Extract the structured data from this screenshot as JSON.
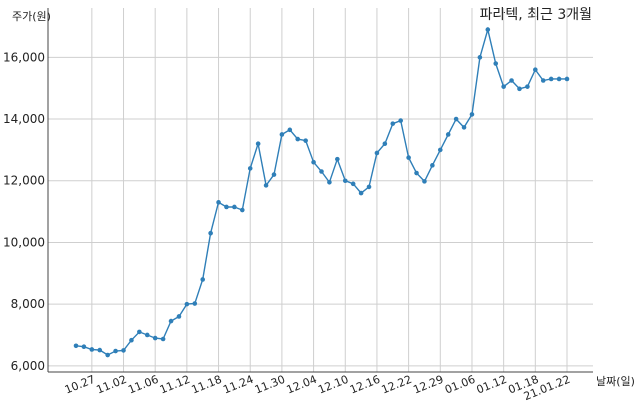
{
  "chart_data": {
    "type": "line",
    "title": "파라텍, 최근 3개월",
    "ylabel": "주가(원)",
    "xlabel": "날짜(일)",
    "ylim": [
      5800,
      17600
    ],
    "yticks": [
      6000,
      8000,
      10000,
      12000,
      14000,
      16000
    ],
    "ytick_labels": [
      "6,000",
      "8,000",
      "10,000",
      "12,000",
      "14,000",
      "16,000"
    ],
    "xtick_labels": [
      "10.27",
      "11.02",
      "11.06",
      "11.12",
      "11.18",
      "11.24",
      "11.30",
      "12.04",
      "12.10",
      "12.16",
      "12.22",
      "12.29",
      "01.06",
      "01.12",
      "01.18",
      "21.01.22"
    ],
    "xtick_index": [
      2,
      6,
      10,
      14,
      18,
      22,
      26,
      30,
      34,
      38,
      42,
      46,
      50,
      54,
      58,
      62
    ],
    "grid": true,
    "series": [
      {
        "values": [
          6650,
          6620,
          6530,
          6510,
          6350,
          6480,
          6500,
          6830,
          7100,
          7000,
          6900,
          6870,
          7450,
          7600,
          8000,
          8020,
          8800,
          10300,
          11300,
          11150,
          11150,
          11050,
          12400,
          13200,
          11850,
          12200,
          13500,
          13650,
          13350,
          13300,
          12600,
          12300,
          11950,
          12700,
          12000,
          11900,
          11600,
          11800,
          12900,
          13200,
          13850,
          13950,
          12750,
          12250,
          11980,
          12500,
          13000,
          13500,
          14000,
          13730,
          14150,
          16000,
          16900,
          15800,
          15050,
          15250,
          14980,
          15050,
          15600,
          15250,
          15300,
          15300,
          15300
        ]
      }
    ],
    "colors": {
      "line": "#2f7fb8",
      "grid": "#cfcfcf"
    }
  }
}
